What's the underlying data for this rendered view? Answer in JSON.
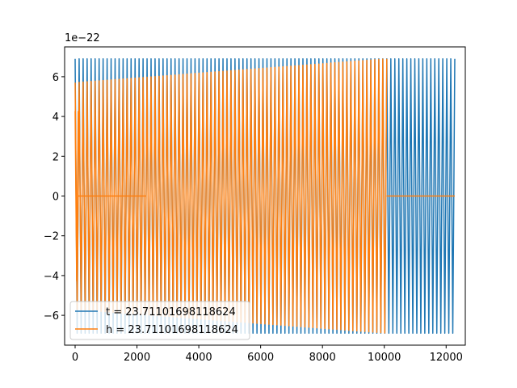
{
  "chart_data": {
    "type": "line",
    "xlim": [
      -340,
      12620
    ],
    "ylim": [
      -7.5,
      7.5
    ],
    "y_offset_label": "1e−22",
    "x_ticks": [
      {
        "value": 0,
        "label": "0"
      },
      {
        "value": 2000,
        "label": "2000"
      },
      {
        "value": 4000,
        "label": "4000"
      },
      {
        "value": 6000,
        "label": "6000"
      },
      {
        "value": 8000,
        "label": "8000"
      },
      {
        "value": 10000,
        "label": "10000"
      },
      {
        "value": 12000,
        "label": "12000"
      }
    ],
    "y_ticks": [
      {
        "value": -6,
        "label": "−6"
      },
      {
        "value": -4,
        "label": "−4"
      },
      {
        "value": -2,
        "label": "−2"
      },
      {
        "value": 0,
        "label": "0"
      },
      {
        "value": 2,
        "label": "2"
      },
      {
        "value": 4,
        "label": "4"
      },
      {
        "value": 6,
        "label": "6"
      }
    ],
    "grid": false,
    "legend_position": "lower-left",
    "series": [
      {
        "name": "t = 23.71101698118624",
        "color": "#1f77b4",
        "segments": [
          {
            "x_start": 0,
            "x_end": 12280,
            "amp_start": 6.9,
            "amp_end": 6.9,
            "cycles": 95
          }
        ]
      },
      {
        "name": "h = 23.71101698118624",
        "color": "#ff7f0e",
        "segments": [
          {
            "x_start": 0,
            "x_end": 100,
            "amp_start": 5.7,
            "amp_end": 5.7,
            "cycles": 1,
            "phase": 0.25
          },
          {
            "x_start": 100,
            "x_end": 2300,
            "flat": true,
            "value": 0
          },
          {
            "x_start": 0,
            "x_end": 10080,
            "amp_start": 5.7,
            "amp_end": 6.9,
            "cycles": 78
          },
          {
            "x_start": 10080,
            "x_end": 12280,
            "flat": true,
            "value": 0
          }
        ]
      }
    ]
  }
}
